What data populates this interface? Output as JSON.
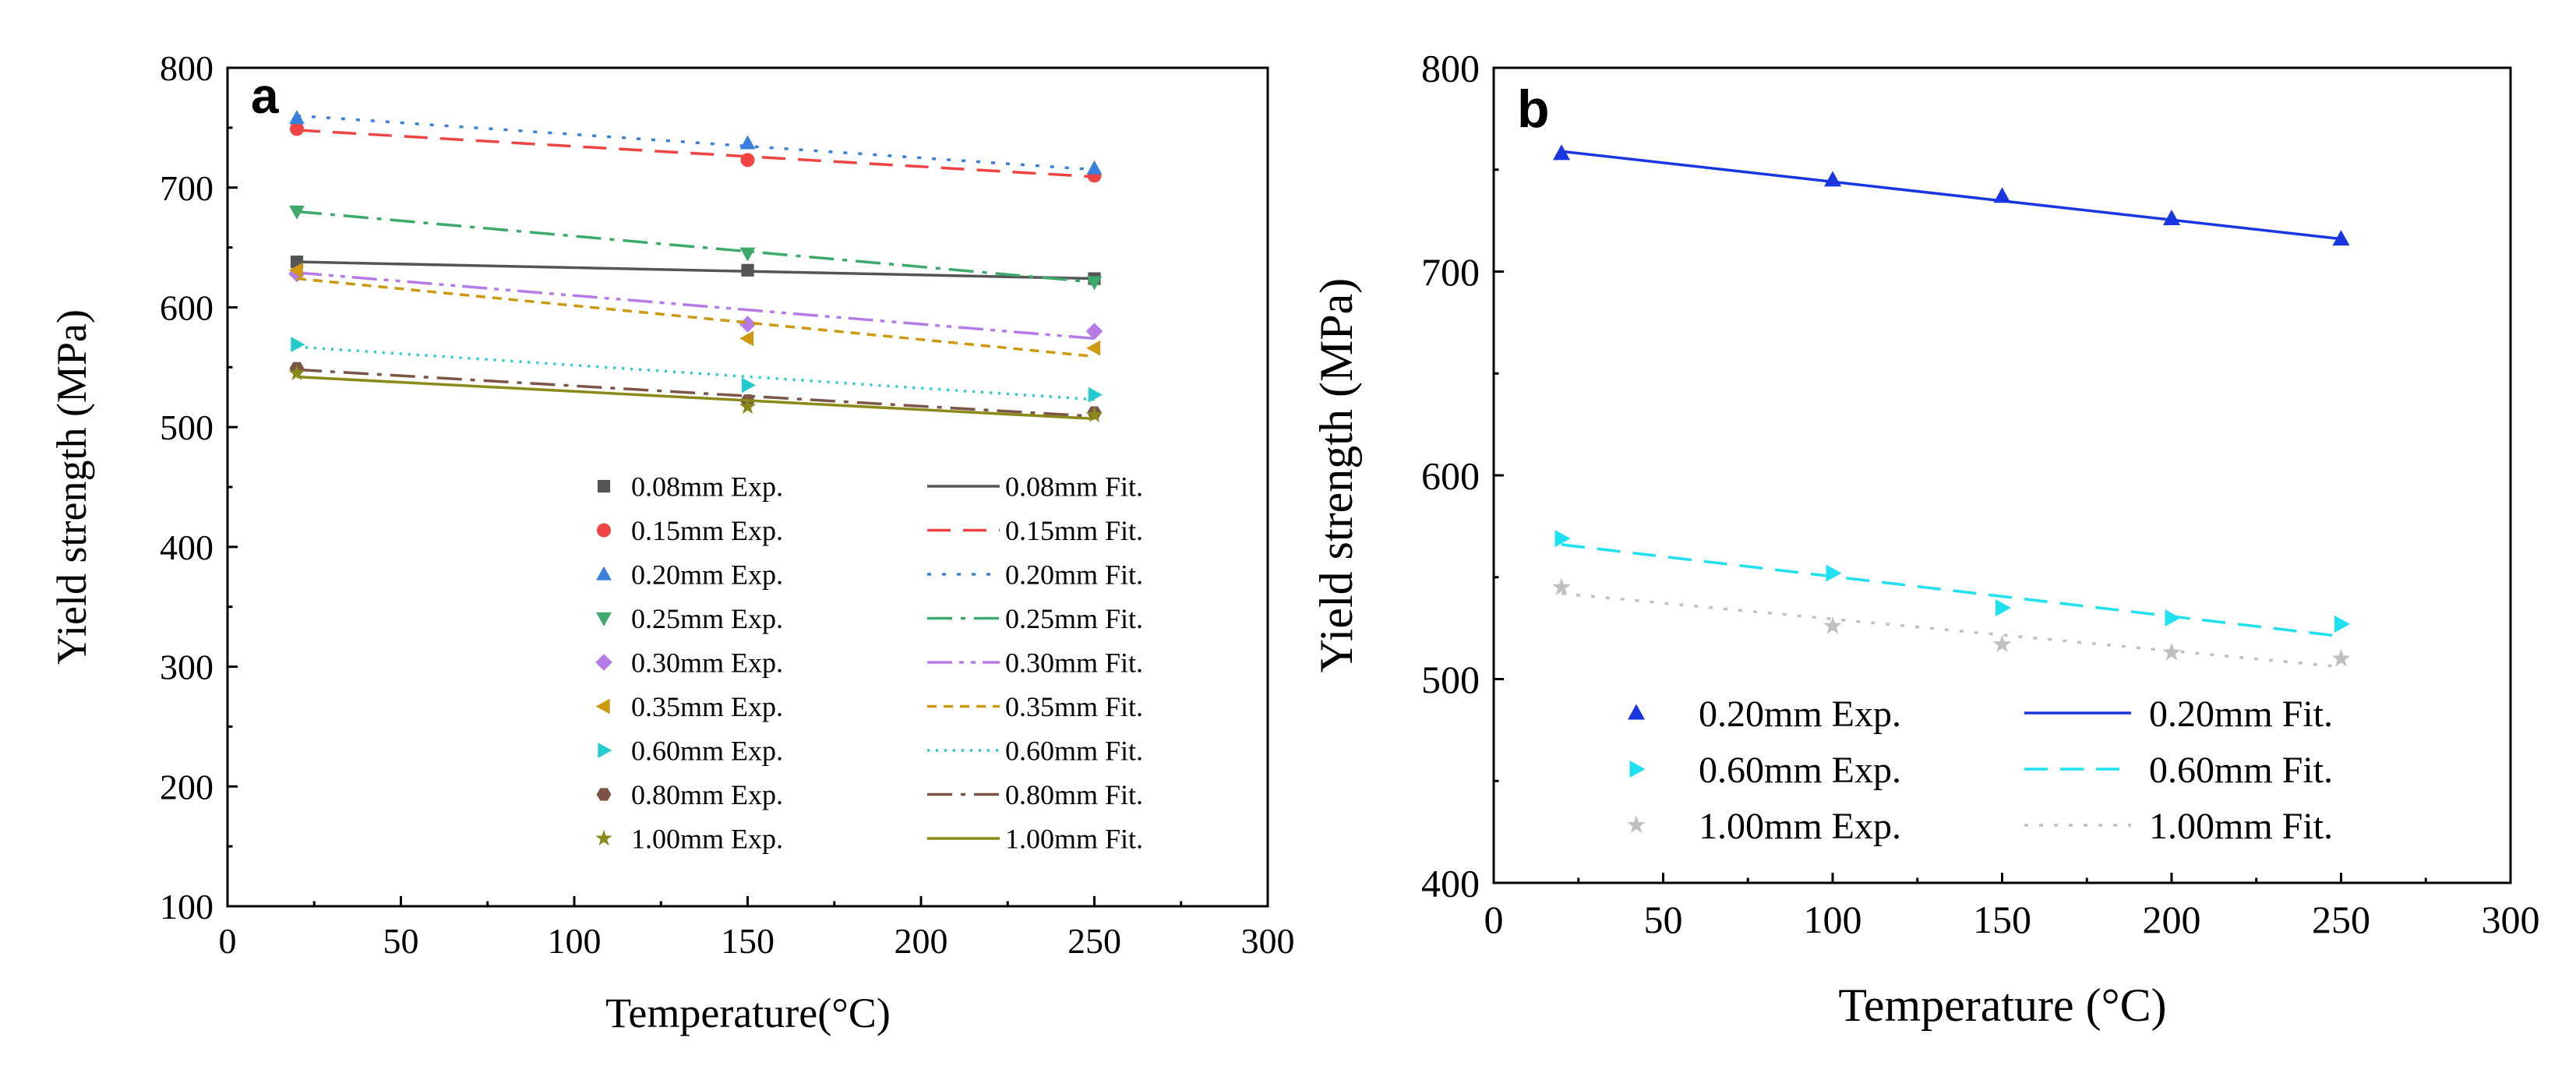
{
  "chart_data": [
    {
      "panel": "a",
      "type": "scatter",
      "title": "",
      "xlabel": "Temperature(°C)",
      "ylabel": "Yield strength (MPa)",
      "xlim": [
        0,
        300
      ],
      "ylim": [
        100,
        800
      ],
      "xticks": [
        0,
        50,
        100,
        150,
        200,
        250,
        300
      ],
      "yticks": [
        100,
        200,
        300,
        400,
        500,
        600,
        700,
        800
      ],
      "grid": false,
      "legend_position": "bottom-right",
      "series": [
        {
          "exp_label": "0.08mm Exp.",
          "fit_label": "0.08mm Fit.",
          "color": "#555555",
          "marker": "square",
          "dash": "solid",
          "x": [
            20,
            150,
            250
          ],
          "y": [
            638,
            631,
            624
          ],
          "fit_y": [
            638,
            624
          ]
        },
        {
          "exp_label": "0.15mm Exp.",
          "fit_label": "0.15mm Fit.",
          "color": "#ee4444",
          "marker": "circle",
          "dash": "dash",
          "x": [
            20,
            150,
            250
          ],
          "y": [
            749,
            723,
            710
          ],
          "fit_y": [
            748,
            709
          ]
        },
        {
          "exp_label": "0.20mm Exp.",
          "fit_label": "0.20mm Fit.",
          "color": "#3a7fdc",
          "marker": "triangle-up",
          "dash": "dot",
          "x": [
            20,
            150,
            250
          ],
          "y": [
            758,
            737,
            716
          ],
          "fit_y": [
            760,
            715
          ]
        },
        {
          "exp_label": "0.25mm Exp.",
          "fit_label": "0.25mm Fit.",
          "color": "#3daa6b",
          "marker": "triangle-down",
          "dash": "dashdot",
          "x": [
            20,
            150,
            250
          ],
          "y": [
            680,
            645,
            621
          ],
          "fit_y": [
            680,
            621
          ]
        },
        {
          "exp_label": "0.30mm Exp.",
          "fit_label": "0.30mm Fit.",
          "color": "#b57be6",
          "marker": "diamond",
          "dash": "dashdotdot",
          "x": [
            20,
            150,
            250
          ],
          "y": [
            628,
            586,
            580
          ],
          "fit_y": [
            629,
            574
          ]
        },
        {
          "exp_label": "0.35mm Exp.",
          "fit_label": "0.35mm Fit.",
          "color": "#cc9911",
          "marker": "triangle-left",
          "dash": "shortdash",
          "x": [
            20,
            150,
            250
          ],
          "y": [
            631,
            574,
            566
          ],
          "fit_y": [
            624,
            559
          ]
        },
        {
          "exp_label": "0.60mm Exp.",
          "fit_label": "0.60mm Fit.",
          "color": "#22cccc",
          "marker": "triangle-right",
          "dash": "finedot",
          "x": [
            20,
            150,
            250
          ],
          "y": [
            569,
            535,
            527
          ],
          "fit_y": [
            567,
            523
          ]
        },
        {
          "exp_label": "0.80mm Exp.",
          "fit_label": "0.80mm Fit.",
          "color": "#7a5548",
          "marker": "hexagon",
          "dash": "dashdot",
          "x": [
            20,
            150,
            250
          ],
          "y": [
            549,
            522,
            512
          ],
          "fit_y": [
            548,
            509
          ]
        },
        {
          "exp_label": "1.00mm Exp.",
          "fit_label": "1.00mm Fit.",
          "color": "#8a8a1a",
          "marker": "star",
          "dash": "solid",
          "x": [
            20,
            150,
            250
          ],
          "y": [
            545,
            517,
            510
          ],
          "fit_y": [
            542,
            507
          ]
        }
      ]
    },
    {
      "panel": "b",
      "type": "scatter",
      "title": "",
      "xlabel": "Temperature (°C)",
      "ylabel": "Yield strength (MPa)",
      "xlim": [
        0,
        300
      ],
      "ylim": [
        400,
        800
      ],
      "xticks": [
        0,
        50,
        100,
        150,
        200,
        250,
        300
      ],
      "yticks": [
        400,
        500,
        600,
        700,
        800
      ],
      "grid": false,
      "legend_position": "bottom",
      "series": [
        {
          "exp_label": "0.20mm Exp.",
          "fit_label": "0.20mm Fit.",
          "color": "#1a36e0",
          "marker": "triangle-up",
          "dash": "solid",
          "x": [
            20,
            100,
            150,
            200,
            250
          ],
          "y": [
            758,
            745,
            737,
            726,
            716
          ],
          "fit_y": [
            759,
            716
          ]
        },
        {
          "exp_label": "0.60mm Exp.",
          "fit_label": "0.60mm Fit.",
          "color": "#1fe0f0",
          "marker": "triangle-right",
          "dash": "dash",
          "x": [
            20,
            100,
            150,
            200,
            250
          ],
          "y": [
            569,
            552,
            535,
            530,
            527
          ],
          "fit_y": [
            566,
            521
          ]
        },
        {
          "exp_label": "1.00mm Exp.",
          "fit_label": "1.00mm Fit.",
          "color": "#c0c0c0",
          "marker": "star",
          "dash": "dot",
          "x": [
            20,
            100,
            150,
            200,
            250
          ],
          "y": [
            545,
            526,
            517,
            513,
            510
          ],
          "fit_y": [
            542,
            506
          ]
        }
      ]
    }
  ]
}
